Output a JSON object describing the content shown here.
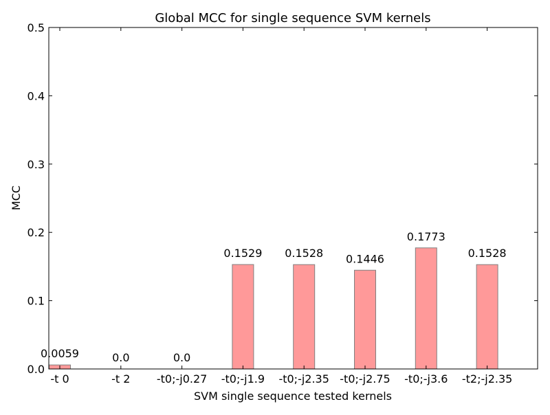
{
  "chart_data": {
    "type": "bar",
    "title": "Global MCC for single sequence SVM kernels",
    "xlabel": "SVM single sequence tested kernels",
    "ylabel": "MCC",
    "categories": [
      "-t 0",
      "-t 2",
      "-t0;-j0.27",
      "-t0;-j1.9",
      "-t0;-j2.35",
      "-t0;-j2.75",
      "-t0;-j3.6",
      "-t2;-j2.35"
    ],
    "values": [
      0.0059,
      0.0,
      0.0,
      0.1529,
      0.1528,
      0.1446,
      0.1773,
      0.1528
    ],
    "data_labels": [
      "0.0059",
      "0.0",
      "0.0",
      "0.1529",
      "0.1528",
      "0.1446",
      "0.1773",
      "0.1528"
    ],
    "ylim": [
      0,
      0.5
    ],
    "yticks": [
      "0.0",
      "0.1",
      "0.2",
      "0.3",
      "0.4",
      "0.5"
    ],
    "grid": false,
    "legend": "none",
    "bar_color": "#ff9999",
    "bar_edge_color": "#7f7f7f"
  }
}
